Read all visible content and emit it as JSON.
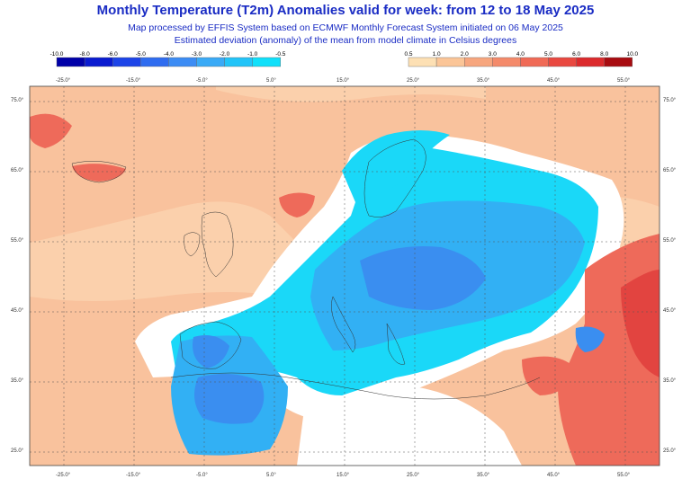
{
  "title": "Monthly Temperature (T2m) Anomalies valid for week: from 12 to 18 May 2025",
  "subtitle1": "Map processed by EFFIS System based on ECMWF Monthly Forecast System initiated on 06 May 2025",
  "subtitle2": "Estimated deviation (anomaly) of the mean from model climate in Celsius degrees",
  "legend_cold": {
    "labels": [
      "-10.0",
      "-8.0",
      "-6.0",
      "-5.0",
      "-4.0",
      "-3.0",
      "-2.0",
      "-1.0",
      "-0.5"
    ],
    "colors": [
      "#0000a8",
      "#0a1bd0",
      "#1c44e8",
      "#2f6cf0",
      "#3c8cf4",
      "#3aaaf6",
      "#22c4f8",
      "#10e0fa"
    ]
  },
  "legend_warm": {
    "labels": [
      "0.5",
      "1.0",
      "2.0",
      "3.0",
      "4.0",
      "5.0",
      "6.0",
      "8.0",
      "10.0"
    ],
    "colors": [
      "#fde0b4",
      "#fbc597",
      "#f7a67e",
      "#f48a6a",
      "#f06a56",
      "#e94840",
      "#dc2a2c",
      "#a80c10"
    ]
  },
  "lon_ticks": [
    "-25.0°",
    "-15.0°",
    "-5.0°",
    "5.0°",
    "15.0°",
    "25.0°",
    "35.0°",
    "45.0°",
    "55.0°"
  ],
  "lat_ticks": [
    "75.0°",
    "65.0°",
    "55.0°",
    "45.0°",
    "35.0°",
    "25.0°"
  ],
  "colors": {
    "ocean_warm": "#f9c29d",
    "land_warm": "#fbd2ae",
    "neutral": "#ffffff",
    "cold_light": "#1ad8f8",
    "cold_mid": "#32b0f4",
    "cold_deep": "#3a8ef0",
    "hot": "#ee6a5a",
    "hotter": "#e24440"
  }
}
